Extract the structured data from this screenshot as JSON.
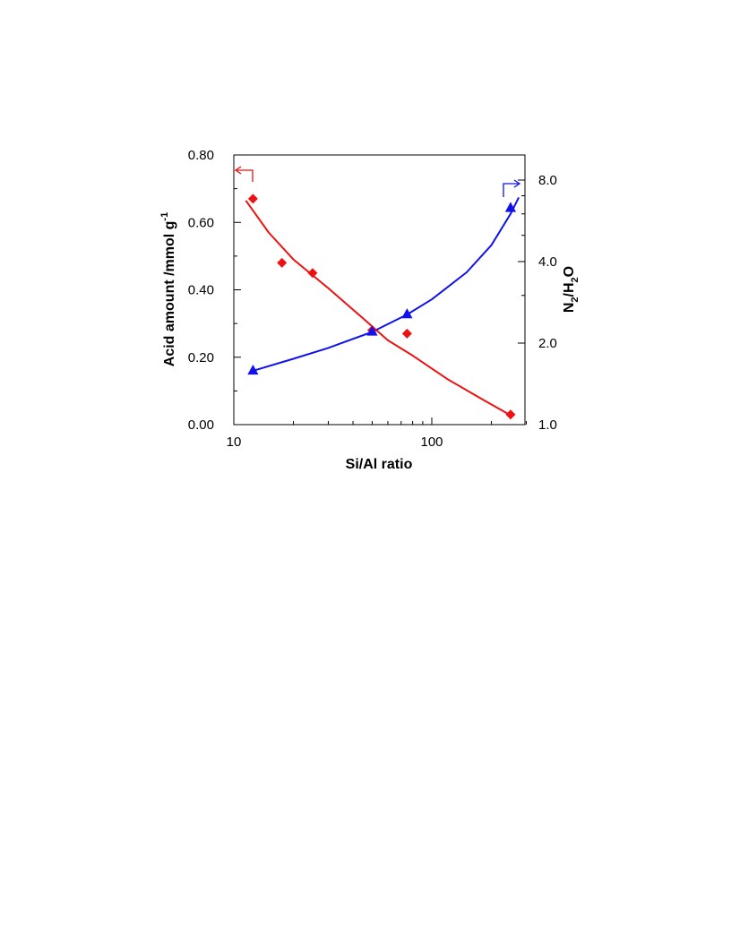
{
  "chart_data": {
    "type": "scatter",
    "xlabel": "Si/Al ratio",
    "x_scale": "log",
    "xlim": [
      10,
      300
    ],
    "x_ticks": [
      "10",
      "100"
    ],
    "ylabel_left": {
      "main": "Acid amount /mmol g",
      "sup": "-1"
    },
    "ylim_left": [
      0.0,
      0.8
    ],
    "y_ticks_left": [
      "0.00",
      "0.20",
      "0.40",
      "0.60",
      "0.80"
    ],
    "ylabel_right": {
      "p1": "N",
      "s1": "2",
      "p2": "/H",
      "s2": "2",
      "p3": "O"
    },
    "y_scale_right": "log",
    "ylim_right": [
      1.0,
      9.0
    ],
    "y_ticks_right": [
      "1.0",
      "2.0",
      "4.0",
      "8.0"
    ],
    "grid": false,
    "series": [
      {
        "axis": "left",
        "marker": "diamond",
        "color": "#ee1111",
        "points": [
          {
            "x": 12.5,
            "y": 0.67
          },
          {
            "x": 17.5,
            "y": 0.48
          },
          {
            "x": 25,
            "y": 0.45
          },
          {
            "x": 50,
            "y": 0.28
          },
          {
            "x": 75,
            "y": 0.27
          },
          {
            "x": 250,
            "y": 0.03
          }
        ],
        "fit": [
          {
            "x": 11.5,
            "y": 0.665
          },
          {
            "x": 15,
            "y": 0.57
          },
          {
            "x": 20,
            "y": 0.49
          },
          {
            "x": 30,
            "y": 0.405
          },
          {
            "x": 45,
            "y": 0.315
          },
          {
            "x": 60,
            "y": 0.25
          },
          {
            "x": 80,
            "y": 0.205
          },
          {
            "x": 120,
            "y": 0.135
          },
          {
            "x": 180,
            "y": 0.075
          },
          {
            "x": 255,
            "y": 0.025
          }
        ]
      },
      {
        "axis": "right",
        "marker": "triangle",
        "color": "#1111ee",
        "points": [
          {
            "x": 12.5,
            "y": 1.58
          },
          {
            "x": 50,
            "y": 2.2
          },
          {
            "x": 75,
            "y": 2.55
          },
          {
            "x": 250,
            "y": 6.3
          }
        ],
        "fit": [
          {
            "x": 12.5,
            "y": 1.58
          },
          {
            "x": 20,
            "y": 1.75
          },
          {
            "x": 30,
            "y": 1.92
          },
          {
            "x": 50,
            "y": 2.2
          },
          {
            "x": 75,
            "y": 2.55
          },
          {
            "x": 100,
            "y": 2.9
          },
          {
            "x": 150,
            "y": 3.65
          },
          {
            "x": 200,
            "y": 4.6
          },
          {
            "x": 250,
            "y": 6.0
          },
          {
            "x": 275,
            "y": 6.9
          }
        ]
      }
    ],
    "colors": {
      "red": "#ee1111",
      "blue": "#1111ee",
      "axis": "#000000"
    }
  }
}
